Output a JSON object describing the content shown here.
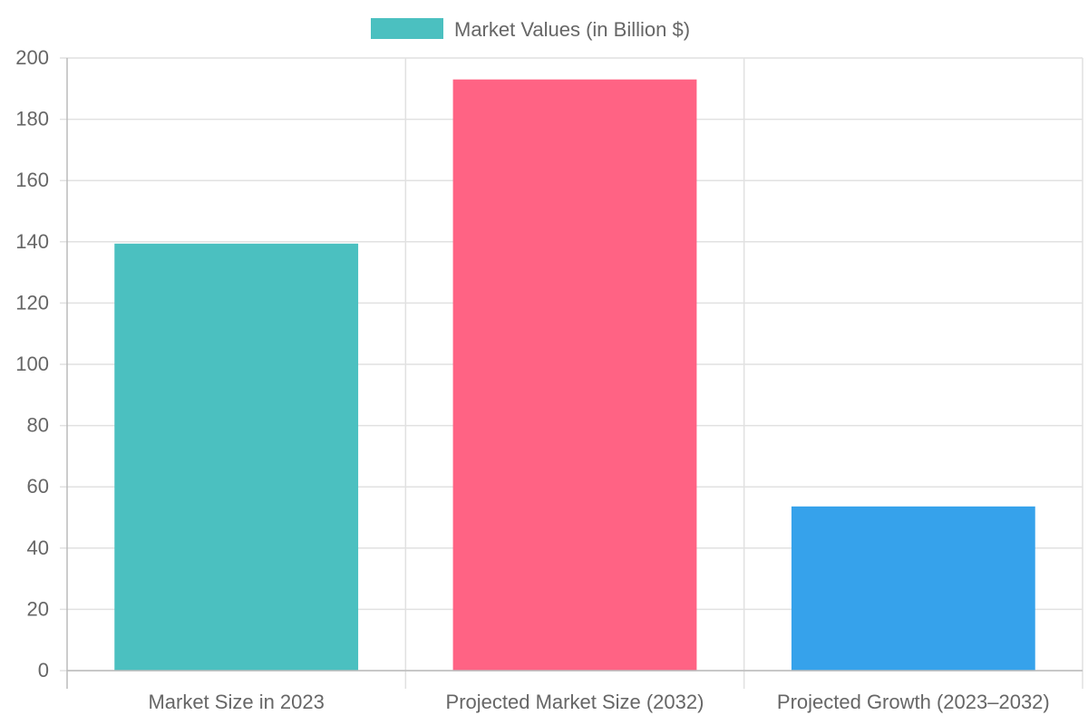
{
  "chart_data": {
    "type": "bar",
    "categories": [
      "Market Size in 2023",
      "Projected Market Size (2032)",
      "Projected Growth (2023–2032)"
    ],
    "series": [
      {
        "name": "Market Values (in Billion $)",
        "values": [
          139.4,
          193.0,
          53.6
        ]
      }
    ],
    "bar_colors": [
      "#4BC0C0",
      "#FF6384",
      "#36A2EB"
    ],
    "legend_color": "#4BC0C0",
    "legend_position": "top",
    "ylim": [
      0,
      200
    ],
    "yticks": [
      0,
      20,
      40,
      60,
      80,
      100,
      120,
      140,
      160,
      180,
      200
    ],
    "grid": true,
    "title": "",
    "xlabel": "",
    "ylabel": ""
  }
}
